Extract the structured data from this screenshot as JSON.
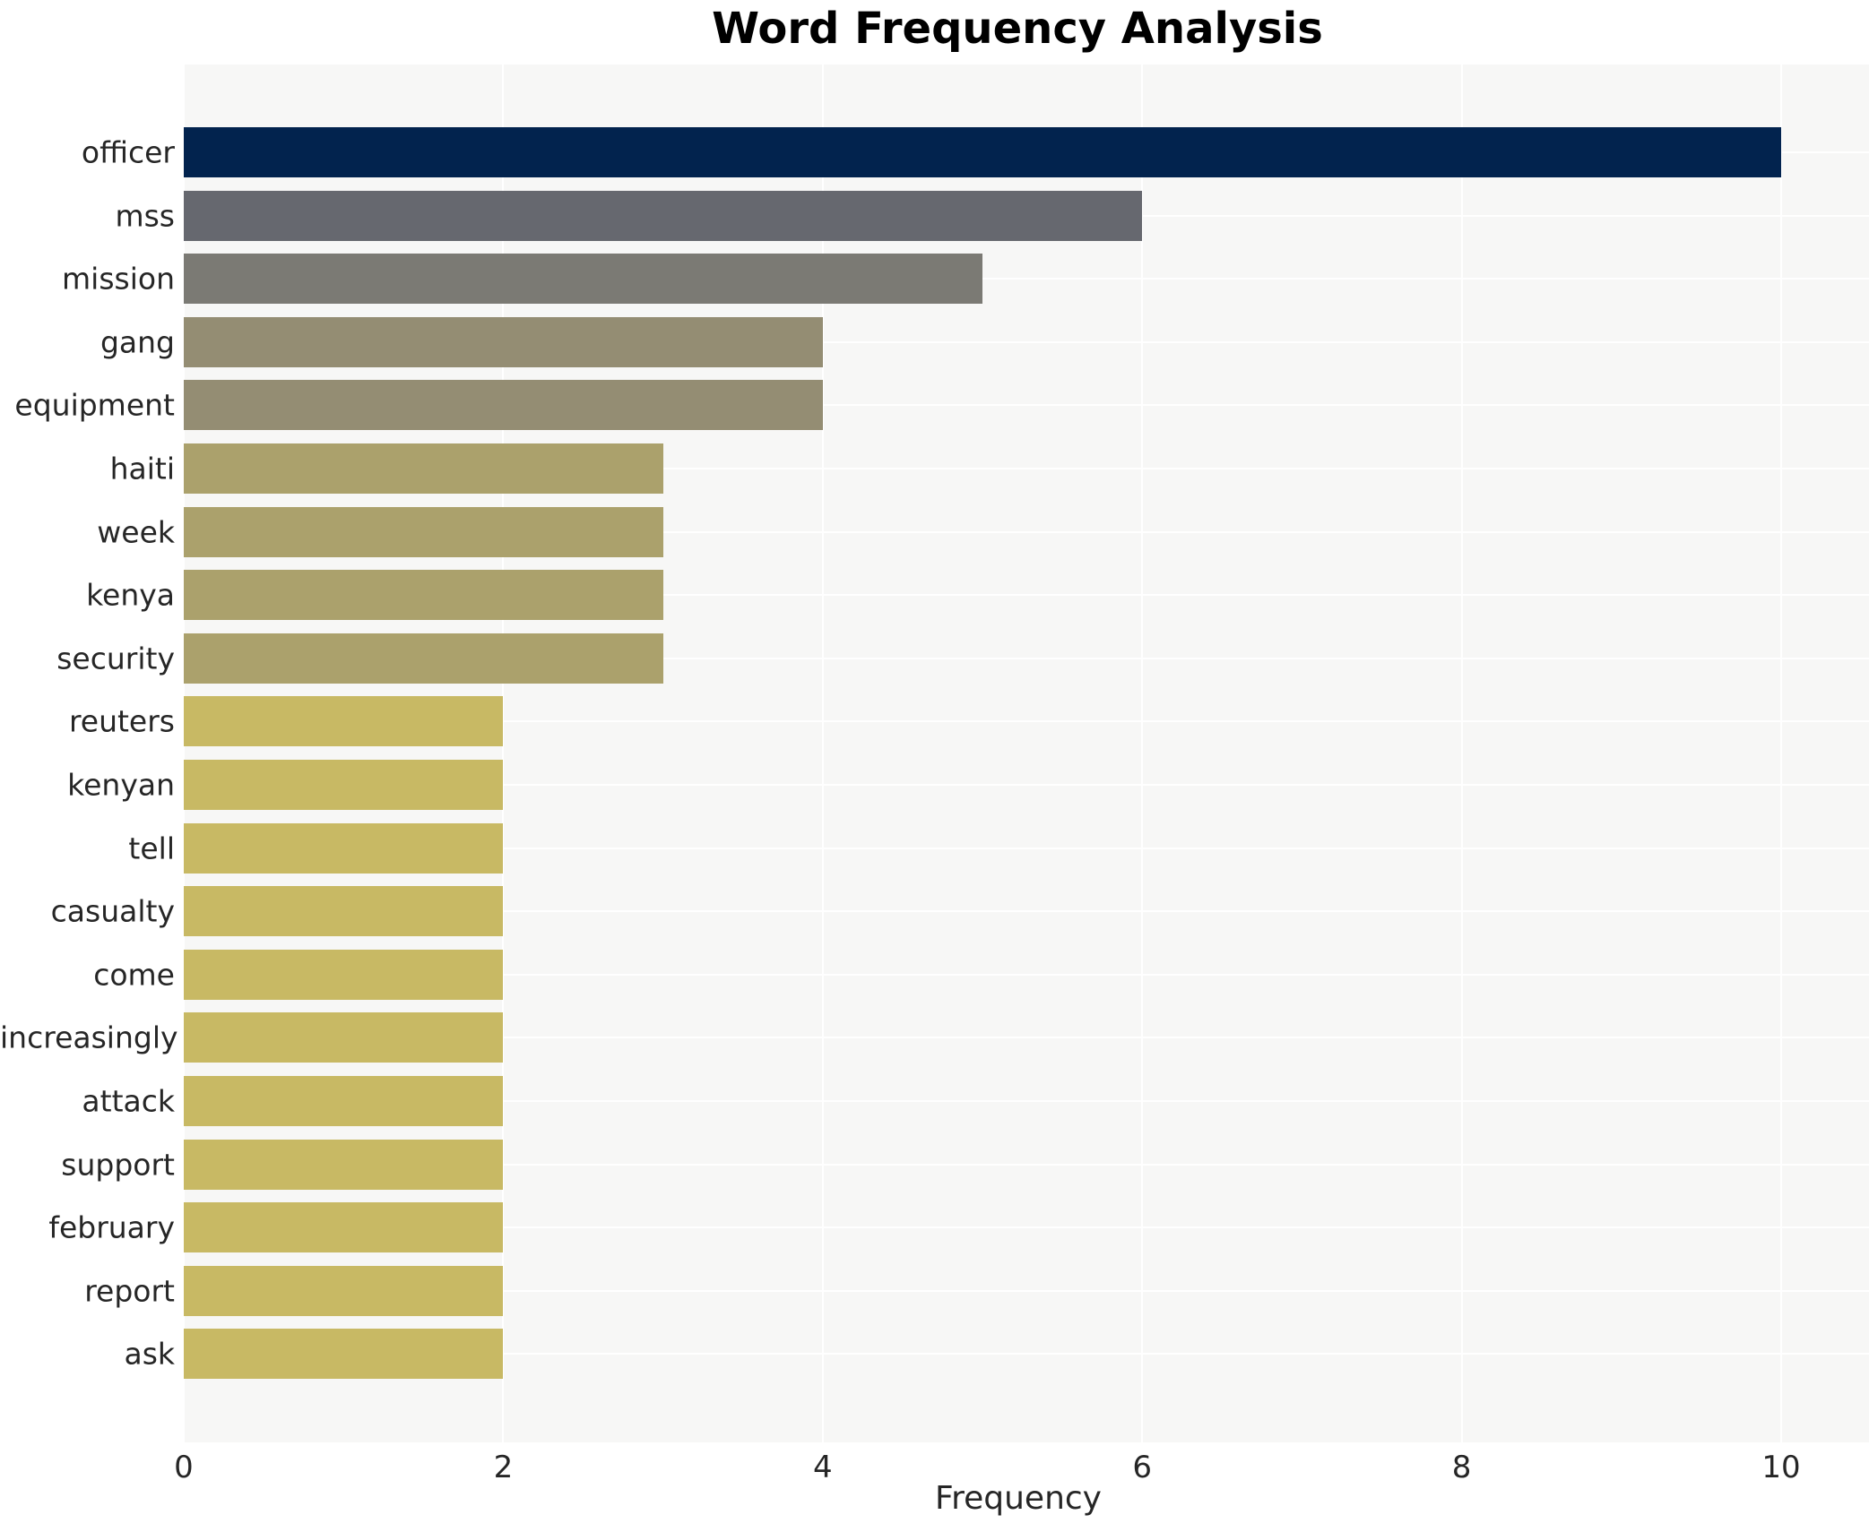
{
  "chart_data": {
    "type": "bar",
    "orientation": "horizontal",
    "title": "Word Frequency Analysis",
    "xlabel": "Frequency",
    "ylabel": "",
    "categories": [
      "officer",
      "mss",
      "mission",
      "gang",
      "equipment",
      "haiti",
      "week",
      "kenya",
      "security",
      "reuters",
      "kenyan",
      "tell",
      "casualty",
      "come",
      "increasingly",
      "attack",
      "support",
      "february",
      "report",
      "ask"
    ],
    "values": [
      10,
      6,
      5,
      4,
      4,
      3,
      3,
      3,
      3,
      2,
      2,
      2,
      2,
      2,
      2,
      2,
      2,
      2,
      2,
      2
    ],
    "bar_colors": [
      "#02234E",
      "#66686F",
      "#7B7A74",
      "#948D73",
      "#948D73",
      "#ABA16C",
      "#ABA16C",
      "#ABA16C",
      "#ABA16C",
      "#C8B964",
      "#C8B964",
      "#C8B964",
      "#C8B964",
      "#C8B964",
      "#C8B964",
      "#C8B964",
      "#C8B964",
      "#C8B964",
      "#C8B964",
      "#C8B964"
    ],
    "x_ticks": [
      0,
      2,
      4,
      6,
      8,
      10
    ],
    "xlim": [
      0,
      10.55
    ],
    "grid": true,
    "legend": "none",
    "plot_background": "#F7F7F6",
    "grid_color": "#FFFFFF",
    "title_color": "#000000",
    "tick_label_color": "#262626"
  }
}
